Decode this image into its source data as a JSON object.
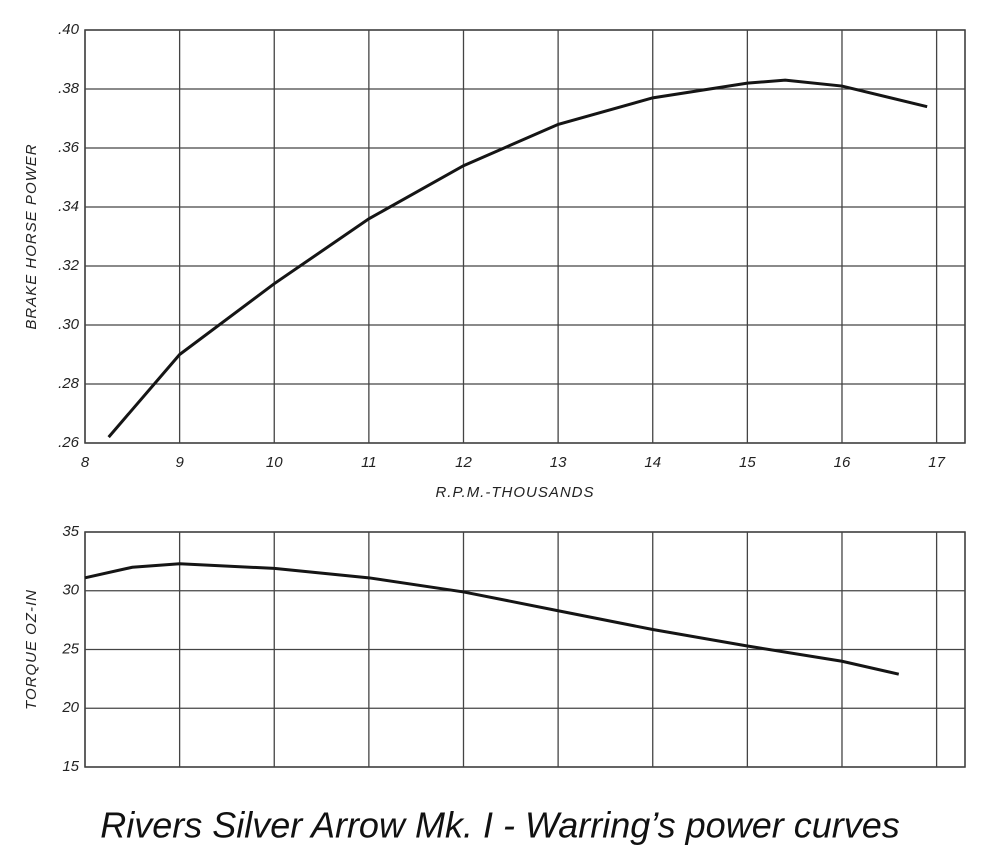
{
  "chart_data": [
    {
      "type": "line",
      "y_label": "BRAKE HORSE POWER",
      "x_label": "R.P.M.-THOUSANDS",
      "x": [
        8.25,
        9,
        10,
        11,
        12,
        13,
        14,
        15,
        15.4,
        16,
        16.9
      ],
      "series": [
        {
          "color": "#151515",
          "values": [
            0.262,
            0.29,
            0.314,
            0.336,
            0.354,
            0.368,
            0.377,
            0.382,
            0.383,
            0.381,
            0.374
          ]
        }
      ],
      "xlim": [
        8,
        17.3
      ],
      "xticks": [
        8,
        9,
        10,
        11,
        12,
        13,
        14,
        15,
        16,
        17
      ],
      "ylim": [
        0.26,
        0.4
      ],
      "yticks": [
        {
          "value": 0.26,
          "label": ".26"
        },
        {
          "value": 0.28,
          "label": ".28"
        },
        {
          "value": 0.3,
          "label": ".30"
        },
        {
          "value": 0.32,
          "label": ".32"
        },
        {
          "value": 0.34,
          "label": ".34"
        },
        {
          "value": 0.36,
          "label": ".36"
        },
        {
          "value": 0.38,
          "label": ".38"
        },
        {
          "value": 0.4,
          "label": ".40"
        }
      ],
      "grid": true,
      "xtick_labels": true
    },
    {
      "type": "line",
      "y_label": "TORQUE OZ-IN",
      "x": [
        8,
        8.5,
        9,
        10,
        11,
        12,
        13,
        14,
        15,
        16,
        16.6
      ],
      "series": [
        {
          "color": "#151515",
          "values": [
            31.1,
            32.0,
            32.3,
            31.9,
            31.1,
            29.9,
            28.3,
            26.7,
            25.3,
            24.0,
            22.9
          ]
        }
      ],
      "xlim": [
        8,
        17.3
      ],
      "xticks": [
        8,
        9,
        10,
        11,
        12,
        13,
        14,
        15,
        16,
        17
      ],
      "ylim": [
        15,
        35
      ],
      "yticks": [
        15,
        20,
        25,
        30,
        35
      ],
      "grid": true,
      "xtick_labels": false
    }
  ],
  "caption": "Rivers Silver Arrow Mk. I - Warring’s power curves"
}
